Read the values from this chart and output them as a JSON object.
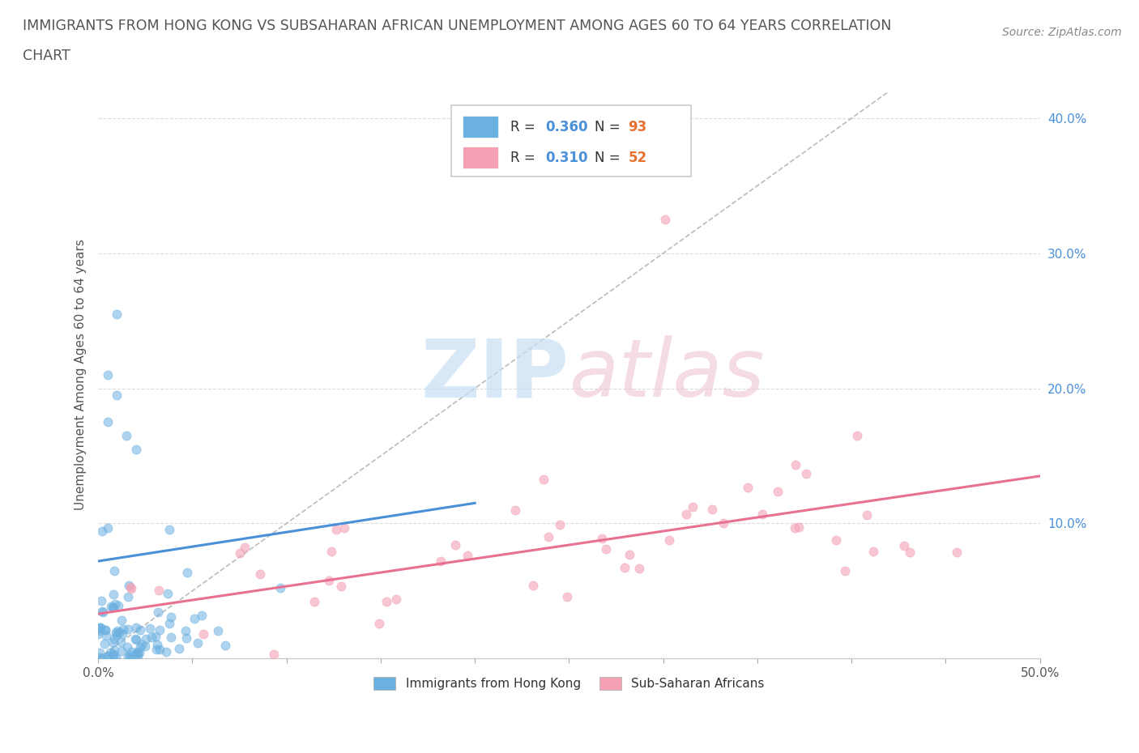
{
  "title_line1": "IMMIGRANTS FROM HONG KONG VS SUBSAHARAN AFRICAN UNEMPLOYMENT AMONG AGES 60 TO 64 YEARS CORRELATION",
  "title_line2": "CHART",
  "source_text": "Source: ZipAtlas.com",
  "ylabel": "Unemployment Among Ages 60 to 64 years",
  "xlim": [
    0.0,
    0.5
  ],
  "ylim": [
    0.0,
    0.42
  ],
  "xtick_positions": [
    0.0,
    0.05,
    0.1,
    0.15,
    0.2,
    0.25,
    0.3,
    0.35,
    0.4,
    0.45,
    0.5
  ],
  "xticklabels": [
    "0.0%",
    "",
    "",
    "",
    "",
    "",
    "",
    "",
    "",
    "",
    "50.0%"
  ],
  "ytick_positions": [
    0.0,
    0.1,
    0.2,
    0.3,
    0.4
  ],
  "ytick_labels": [
    "",
    "10.0%",
    "20.0%",
    "30.0%",
    "40.0%"
  ],
  "legend_r1": "0.360",
  "legend_n1": "93",
  "legend_r2": "0.310",
  "legend_n2": "52",
  "blue_color": "#6ab0e0",
  "pink_color": "#f4a0b5",
  "blue_line_color": "#4a90d9",
  "pink_line_color": "#e87090",
  "r_color": "#4a90d9",
  "n_color": "#e87030",
  "watermark_color_zip": "#c8dff5",
  "watermark_color_atlas": "#f0c8d5",
  "background_color": "#ffffff",
  "grid_color": "#cccccc",
  "diag_color": "#aaaaaa",
  "title_color": "#555555",
  "ylabel_color": "#555555",
  "ytick_color": "#4a90d9",
  "xtick_color": "#555555",
  "source_color": "#888888"
}
